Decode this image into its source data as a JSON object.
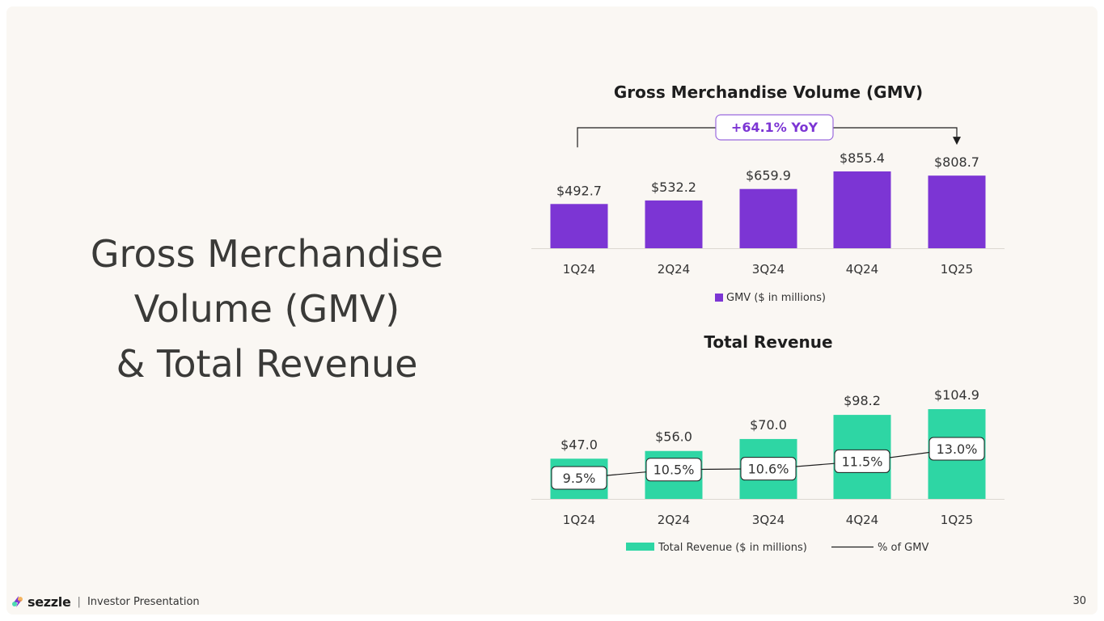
{
  "headline": {
    "line1": "Gross Merchandise",
    "line2": "Volume (GMV)",
    "line3": "& Total Revenue"
  },
  "colors": {
    "gmv_bar": "#7c35d4",
    "revenue_bar": "#2ed6a4",
    "callout_border": "#9b6ade",
    "callout_text": "#7c35d4",
    "text": "#333333"
  },
  "chart_data": [
    {
      "type": "bar",
      "title": "Gross Merchandise Volume (GMV)",
      "categories": [
        "1Q24",
        "2Q24",
        "3Q24",
        "4Q24",
        "1Q25"
      ],
      "series": [
        {
          "name": "GMV ($ in millions)",
          "values": [
            492.7,
            532.2,
            659.9,
            855.4,
            808.7
          ]
        }
      ],
      "data_labels": [
        "$492.7",
        "$532.2",
        "$659.9",
        "$855.4",
        "$808.7"
      ],
      "annotation": "+64.1% YoY",
      "ylim": [
        0,
        900
      ],
      "legend_position": "bottom",
      "grid": false
    },
    {
      "type": "bar",
      "title": "Total Revenue",
      "categories": [
        "1Q24",
        "2Q24",
        "3Q24",
        "4Q24",
        "1Q25"
      ],
      "series": [
        {
          "name": "Total Revenue ($ in millions)",
          "values": [
            47.0,
            56.0,
            70.0,
            98.2,
            104.9
          ]
        },
        {
          "name": "% of GMV",
          "type": "line",
          "values": [
            9.5,
            10.5,
            10.6,
            11.5,
            13.0
          ]
        }
      ],
      "data_labels": [
        "$47.0",
        "$56.0",
        "$70.0",
        "$98.2",
        "$104.9"
      ],
      "line_labels": [
        "9.5%",
        "10.5%",
        "10.6%",
        "11.5%",
        "13.0%"
      ],
      "ylim": [
        0,
        110
      ],
      "line_ylim": [
        9,
        13.5
      ],
      "legend_position": "bottom",
      "grid": false
    }
  ],
  "footer": {
    "brand": "sezzle",
    "separator": "|",
    "label": "Investor Presentation",
    "page": "30"
  }
}
